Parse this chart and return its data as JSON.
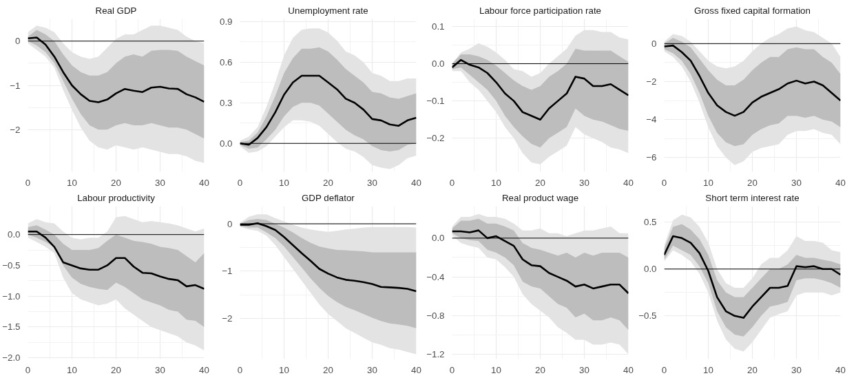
{
  "chart_data": [
    {
      "type": "line",
      "title": "Real GDP",
      "x": [
        0,
        2,
        4,
        6,
        8,
        10,
        12,
        14,
        16,
        18,
        20,
        22,
        24,
        26,
        28,
        30,
        32,
        34,
        36,
        38,
        40
      ],
      "xlim": [
        0,
        40
      ],
      "xticks": [
        0,
        10,
        20,
        30,
        40
      ],
      "ylim": [
        -2.95,
        0.5
      ],
      "yticks": [
        0,
        {
          "value": -1,
          "label": "−1"
        },
        {
          "value": -2,
          "label": "−2"
        }
      ],
      "grid": true,
      "ref_lines": [
        {
          "axis": "y",
          "value": 0,
          "color": "#000000"
        }
      ],
      "series": [
        {
          "color": "#e3e3e3",
          "values": [
            null,
            null,
            null,
            null,
            null,
            null,
            null,
            null,
            null,
            null,
            null,
            null,
            null,
            null,
            null,
            null,
            null,
            null,
            null,
            null,
            null
          ],
          "upper": [
            0.2,
            0.35,
            0.3,
            0.2,
            -0.05,
            -0.25,
            -0.35,
            -0.4,
            -0.35,
            -0.15,
            0.05,
            0.15,
            0.15,
            0.25,
            0.35,
            0.35,
            0.3,
            0.25,
            0.1,
            0.0,
            -0.05
          ],
          "lower": [
            -0.05,
            -0.2,
            -0.35,
            -0.6,
            -1.1,
            -1.55,
            -1.95,
            -2.25,
            -2.4,
            -2.45,
            -2.35,
            -2.4,
            -2.45,
            -2.4,
            -2.45,
            -2.5,
            -2.55,
            -2.55,
            -2.6,
            -2.7,
            -2.75
          ]
        },
        {
          "color": "#bdbdbd",
          "values": [
            null,
            null,
            null,
            null,
            null,
            null,
            null,
            null,
            null,
            null,
            null,
            null,
            null,
            null,
            null,
            null,
            null,
            null,
            null,
            null,
            null
          ],
          "upper": [
            0.1,
            0.25,
            0.15,
            0,
            -0.3,
            -0.55,
            -0.7,
            -0.78,
            -0.78,
            -0.7,
            -0.5,
            -0.35,
            -0.3,
            -0.35,
            -0.22,
            -0.2,
            -0.2,
            -0.22,
            -0.35,
            -0.45,
            -0.55
          ],
          "lower": [
            0,
            -0.1,
            -0.25,
            -0.5,
            -0.9,
            -1.3,
            -1.65,
            -1.9,
            -2.0,
            -2.0,
            -1.9,
            -1.85,
            -1.9,
            -1.9,
            -1.85,
            -1.9,
            -1.95,
            -1.95,
            -2.0,
            -2.1,
            -2.2
          ]
        },
        {
          "color": "#000000",
          "values": [
            0.06,
            0.08,
            -0.08,
            -0.35,
            -0.7,
            -1.0,
            -1.2,
            -1.35,
            -1.38,
            -1.32,
            -1.18,
            -1.08,
            -1.12,
            -1.15,
            -1.05,
            -1.03,
            -1.07,
            -1.08,
            -1.2,
            -1.27,
            -1.37
          ]
        }
      ]
    },
    {
      "type": "line",
      "title": "Unemployment rate",
      "x": [
        0,
        2,
        4,
        6,
        8,
        10,
        12,
        14,
        16,
        18,
        20,
        22,
        24,
        26,
        28,
        30,
        32,
        34,
        36,
        38,
        40
      ],
      "xlim": [
        0,
        40
      ],
      "xticks": [
        0,
        10,
        20,
        30,
        40
      ],
      "ylim": [
        -0.21,
        0.92
      ],
      "yticks": [
        {
          "value": 0,
          "label": "0.0"
        },
        0.3,
        0.6,
        0.9
      ],
      "grid": true,
      "ref_lines": [
        {
          "axis": "y",
          "value": 0,
          "color": "#000000"
        }
      ],
      "series": [
        {
          "color": "#e3e3e3",
          "values": [
            null,
            null,
            null,
            null,
            null,
            null,
            null,
            null,
            null,
            null,
            null,
            null,
            null,
            null,
            null,
            null,
            null,
            null,
            null,
            null,
            null
          ],
          "upper": [
            0.02,
            0.05,
            0.12,
            0.27,
            0.45,
            0.65,
            0.78,
            0.84,
            0.85,
            0.85,
            0.82,
            0.76,
            0.68,
            0.65,
            0.6,
            0.52,
            0.5,
            0.46,
            0.46,
            0.48,
            0.48
          ],
          "lower": [
            -0.02,
            -0.07,
            -0.06,
            -0.02,
            0.05,
            0.12,
            0.17,
            0.17,
            0.16,
            0.13,
            0.07,
            0.01,
            -0.04,
            -0.06,
            -0.1,
            -0.16,
            -0.18,
            -0.19,
            -0.16,
            -0.11,
            -0.09
          ]
        },
        {
          "color": "#bdbdbd",
          "values": [
            null,
            null,
            null,
            null,
            null,
            null,
            null,
            null,
            null,
            null,
            null,
            null,
            null,
            null,
            null,
            null,
            null,
            null,
            null,
            null,
            null
          ],
          "upper": [
            0.01,
            0.02,
            0.08,
            0.2,
            0.35,
            0.52,
            0.63,
            0.7,
            0.7,
            0.71,
            0.68,
            0.62,
            0.55,
            0.5,
            0.45,
            0.38,
            0.37,
            0.34,
            0.33,
            0.35,
            0.37
          ],
          "lower": [
            -0.01,
            -0.04,
            -0.03,
            0.03,
            0.1,
            0.2,
            0.27,
            0.3,
            0.3,
            0.28,
            0.22,
            0.16,
            0.1,
            0.06,
            0.03,
            -0.02,
            -0.05,
            -0.06,
            -0.05,
            -0.01,
            0.0
          ]
        },
        {
          "color": "#000000",
          "values": [
            0,
            -0.01,
            0.04,
            0.12,
            0.23,
            0.36,
            0.45,
            0.5,
            0.5,
            0.5,
            0.45,
            0.4,
            0.33,
            0.3,
            0.25,
            0.18,
            0.17,
            0.14,
            0.13,
            0.17,
            0.19
          ]
        }
      ]
    },
    {
      "type": "line",
      "title": "Labour force participation rate",
      "x": [
        0,
        2,
        4,
        6,
        8,
        10,
        12,
        14,
        16,
        18,
        20,
        22,
        24,
        26,
        28,
        30,
        32,
        34,
        36,
        38,
        40
      ],
      "xlim": [
        0,
        40
      ],
      "xticks": [
        0,
        10,
        20,
        30,
        40
      ],
      "ylim": [
        -0.29,
        0.12
      ],
      "yticks": [
        0.1,
        {
          "value": 0,
          "label": "0.0"
        },
        {
          "value": -0.1,
          "label": "−0.1"
        },
        {
          "value": -0.2,
          "label": "−0.2"
        }
      ],
      "grid": true,
      "ref_lines": [
        {
          "axis": "y",
          "value": 0,
          "color": "#000000"
        }
      ],
      "series": [
        {
          "color": "#e3e3e3",
          "values": [
            null,
            null,
            null,
            null,
            null,
            null,
            null,
            null,
            null,
            null,
            null,
            null,
            null,
            null,
            null,
            null,
            null,
            null,
            null,
            null,
            null
          ],
          "upper": [
            0.0,
            0.03,
            0.04,
            0.055,
            0.045,
            0.03,
            0.01,
            -0.015,
            -0.02,
            -0.035,
            -0.025,
            0.0,
            0.02,
            0.04,
            0.075,
            0.09,
            0.09,
            0.085,
            0.085,
            0.07,
            0.065
          ],
          "lower": [
            -0.02,
            -0.02,
            -0.05,
            -0.07,
            -0.1,
            -0.13,
            -0.17,
            -0.2,
            -0.24,
            -0.265,
            -0.27,
            -0.25,
            -0.235,
            -0.22,
            -0.17,
            -0.19,
            -0.2,
            -0.21,
            -0.225,
            -0.23,
            -0.24
          ]
        },
        {
          "color": "#bdbdbd",
          "values": [
            null,
            null,
            null,
            null,
            null,
            null,
            null,
            null,
            null,
            null,
            null,
            null,
            null,
            null,
            null,
            null,
            null,
            null,
            null,
            null,
            null
          ],
          "upper": [
            0.0,
            0.025,
            0.025,
            0.02,
            0.01,
            -0.005,
            -0.025,
            -0.045,
            -0.06,
            -0.07,
            -0.06,
            -0.035,
            -0.02,
            0.0,
            0.04,
            0.035,
            0.035,
            0.035,
            0.035,
            0.02,
            0.005
          ],
          "lower": [
            -0.015,
            -0.01,
            -0.03,
            -0.05,
            -0.07,
            -0.1,
            -0.14,
            -0.17,
            -0.195,
            -0.215,
            -0.225,
            -0.2,
            -0.185,
            -0.17,
            -0.12,
            -0.14,
            -0.15,
            -0.155,
            -0.165,
            -0.175,
            -0.18
          ]
        },
        {
          "color": "#000000",
          "values": [
            -0.01,
            0.01,
            -0.003,
            -0.01,
            -0.025,
            -0.05,
            -0.08,
            -0.1,
            -0.13,
            -0.14,
            -0.15,
            -0.12,
            -0.1,
            -0.08,
            -0.035,
            -0.04,
            -0.06,
            -0.06,
            -0.055,
            -0.07,
            -0.085
          ]
        }
      ]
    },
    {
      "type": "line",
      "title": "Gross fixed capital formation",
      "x": [
        0,
        2,
        4,
        6,
        8,
        10,
        12,
        14,
        16,
        18,
        20,
        22,
        24,
        26,
        28,
        30,
        32,
        34,
        36,
        38,
        40
      ],
      "xlim": [
        0,
        40
      ],
      "xticks": [
        0,
        10,
        20,
        30,
        40
      ],
      "ylim": [
        -6.75,
        1.3
      ],
      "yticks": [
        0,
        {
          "value": -2,
          "label": "−2"
        },
        {
          "value": -4,
          "label": "−4"
        },
        {
          "value": -6,
          "label": "−6"
        }
      ],
      "grid": true,
      "ref_lines": [
        {
          "axis": "y",
          "value": 0,
          "color": "#000000"
        }
      ],
      "series": [
        {
          "color": "#e3e3e3",
          "values": [
            null,
            null,
            null,
            null,
            null,
            null,
            null,
            null,
            null,
            null,
            null,
            null,
            null,
            null,
            null,
            null,
            null,
            null,
            null,
            null,
            null
          ],
          "upper": [
            0.1,
            0.5,
            0.4,
            0.1,
            -0.4,
            -0.9,
            -1.2,
            -1.3,
            -1.2,
            -0.9,
            -0.4,
            0.0,
            0.3,
            0.5,
            0.8,
            0.9,
            0.7,
            0.6,
            0.3,
            0.0,
            -0.7
          ],
          "lower": [
            -0.4,
            -0.7,
            -1.2,
            -2.0,
            -3.1,
            -4.4,
            -5.4,
            -6.0,
            -6.4,
            -6.2,
            -5.7,
            -5.5,
            -5.4,
            -5.3,
            -4.8,
            -4.6,
            -4.6,
            -4.5,
            -4.7,
            -4.8,
            -5.3
          ]
        },
        {
          "color": "#bdbdbd",
          "values": [
            null,
            null,
            null,
            null,
            null,
            null,
            null,
            null,
            null,
            null,
            null,
            null,
            null,
            null,
            null,
            null,
            null,
            null,
            null,
            null,
            null
          ],
          "upper": [
            0,
            0.3,
            0.1,
            -0.2,
            -0.8,
            -1.4,
            -1.9,
            -2.2,
            -2.2,
            -1.9,
            -1.4,
            -1.0,
            -0.7,
            -0.7,
            -0.3,
            -0.2,
            -0.3,
            -0.3,
            -0.7,
            -1.0,
            -1.6
          ],
          "lower": [
            -0.3,
            -0.5,
            -0.9,
            -1.6,
            -2.6,
            -3.8,
            -4.7,
            -5.2,
            -5.4,
            -5.3,
            -4.8,
            -4.5,
            -4.3,
            -4.2,
            -3.8,
            -3.8,
            -3.9,
            -3.8,
            -4.0,
            -4.1,
            -4.4
          ]
        },
        {
          "color": "#000000",
          "values": [
            -0.15,
            -0.1,
            -0.45,
            -0.9,
            -1.7,
            -2.6,
            -3.25,
            -3.6,
            -3.8,
            -3.6,
            -3.1,
            -2.8,
            -2.6,
            -2.4,
            -2.1,
            -1.95,
            -2.1,
            -2.0,
            -2.2,
            -2.6,
            -3.0
          ]
        }
      ]
    },
    {
      "type": "line",
      "title": "Labour productivity",
      "x": [
        0,
        2,
        4,
        6,
        8,
        10,
        12,
        14,
        16,
        18,
        20,
        22,
        24,
        26,
        28,
        30,
        32,
        34,
        36,
        38,
        40
      ],
      "xlim": [
        0,
        40
      ],
      "xticks": [
        0,
        10,
        20,
        30,
        40
      ],
      "ylim": [
        -2.02,
        0.46
      ],
      "yticks": [
        {
          "value": 0,
          "label": "0.0"
        },
        {
          "value": -0.5,
          "label": "−0.5"
        },
        {
          "value": -1,
          "label": "−1.0"
        },
        {
          "value": -1.5,
          "label": "−1.5"
        },
        {
          "value": -2,
          "label": "−2.0"
        }
      ],
      "grid": true,
      "ref_lines": [
        {
          "axis": "y",
          "value": 0,
          "color": "#000000"
        }
      ],
      "series": [
        {
          "color": "#e3e3e3",
          "values": [
            null,
            null,
            null,
            null,
            null,
            null,
            null,
            null,
            null,
            null,
            null,
            null,
            null,
            null,
            null,
            null,
            null,
            null,
            null,
            null,
            null
          ],
          "upper": [
            0.18,
            0.25,
            0.2,
            0.18,
            0.05,
            -0.05,
            -0.08,
            -0.05,
            -0.05,
            0.05,
            0.28,
            0.3,
            0.25,
            0.2,
            0.22,
            0.2,
            0.18,
            0.15,
            0.1,
            0.05,
            0.1
          ],
          "lower": [
            -0.05,
            -0.12,
            -0.2,
            -0.3,
            -0.7,
            -0.95,
            -1.05,
            -1.1,
            -1.15,
            -1.12,
            -1.05,
            -1.2,
            -1.3,
            -1.4,
            -1.5,
            -1.55,
            -1.6,
            -1.65,
            -1.75,
            -1.8,
            -1.88
          ]
        },
        {
          "color": "#bdbdbd",
          "values": [
            null,
            null,
            null,
            null,
            null,
            null,
            null,
            null,
            null,
            null,
            null,
            null,
            null,
            null,
            null,
            null,
            null,
            null,
            null,
            null,
            null
          ],
          "upper": [
            0.12,
            0.15,
            0.08,
            0.0,
            -0.15,
            -0.25,
            -0.25,
            -0.25,
            -0.22,
            -0.1,
            0.0,
            -0.05,
            -0.1,
            -0.12,
            -0.15,
            -0.2,
            -0.22,
            -0.25,
            -0.35,
            -0.45,
            -0.3
          ],
          "lower": [
            0,
            -0.05,
            -0.12,
            -0.2,
            -0.5,
            -0.7,
            -0.8,
            -0.85,
            -0.88,
            -0.9,
            -0.78,
            -0.85,
            -0.95,
            -1.05,
            -1.1,
            -1.15,
            -1.22,
            -1.25,
            -1.38,
            -1.4,
            -1.5
          ]
        },
        {
          "color": "#000000",
          "values": [
            0.05,
            0.05,
            -0.05,
            -0.2,
            -0.45,
            -0.5,
            -0.55,
            -0.57,
            -0.57,
            -0.5,
            -0.38,
            -0.38,
            -0.52,
            -0.62,
            -0.63,
            -0.68,
            -0.72,
            -0.74,
            -0.84,
            -0.82,
            -0.88
          ]
        }
      ]
    },
    {
      "type": "line",
      "title": "GDP deflator",
      "x": [
        0,
        2,
        4,
        6,
        8,
        10,
        12,
        14,
        16,
        18,
        20,
        22,
        24,
        26,
        28,
        30,
        32,
        34,
        36,
        38,
        40
      ],
      "xlim": [
        0,
        40
      ],
      "xticks": [
        0,
        10,
        20,
        30,
        40
      ],
      "ylim": [
        -2.85,
        0.37
      ],
      "yticks": [
        0,
        {
          "value": -1,
          "label": "−1"
        },
        {
          "value": -2,
          "label": "−2"
        }
      ],
      "grid": true,
      "ref_lines": [
        {
          "axis": "y",
          "value": 0,
          "color": "#000000"
        }
      ],
      "series": [
        {
          "color": "#e3e3e3",
          "values": [
            null,
            null,
            null,
            null,
            null,
            null,
            null,
            null,
            null,
            null,
            null,
            null,
            null,
            null,
            null,
            null,
            null,
            null,
            null,
            null,
            null
          ],
          "upper": [
            0.02,
            0.15,
            0.2,
            0.2,
            0.12,
            0.05,
            -0.02,
            -0.08,
            -0.12,
            -0.15,
            -0.17,
            -0.15,
            -0.12,
            -0.1,
            -0.08,
            -0.07,
            -0.07,
            -0.07,
            -0.07,
            -0.07,
            -0.08
          ],
          "lower": [
            -0.06,
            -0.12,
            -0.15,
            -0.25,
            -0.45,
            -0.7,
            -0.95,
            -1.2,
            -1.45,
            -1.7,
            -1.9,
            -2.05,
            -2.2,
            -2.3,
            -2.4,
            -2.5,
            -2.55,
            -2.62,
            -2.65,
            -2.7,
            -2.75
          ]
        },
        {
          "color": "#bdbdbd",
          "values": [
            null,
            null,
            null,
            null,
            null,
            null,
            null,
            null,
            null,
            null,
            null,
            null,
            null,
            null,
            null,
            null,
            null,
            null,
            null,
            null,
            null
          ],
          "upper": [
            0,
            0.08,
            0.1,
            0.08,
            0.0,
            -0.08,
            -0.18,
            -0.3,
            -0.4,
            -0.48,
            -0.52,
            -0.55,
            -0.56,
            -0.57,
            -0.58,
            -0.6,
            -0.6,
            -0.6,
            -0.6,
            -0.6,
            -0.6
          ],
          "lower": [
            -0.05,
            -0.08,
            -0.08,
            -0.18,
            -0.3,
            -0.48,
            -0.7,
            -0.92,
            -1.15,
            -1.35,
            -1.52,
            -1.65,
            -1.75,
            -1.82,
            -1.9,
            -1.98,
            -2.05,
            -2.1,
            -2.12,
            -2.15,
            -2.2
          ]
        },
        {
          "color": "#000000",
          "values": [
            -0.02,
            -0.02,
            0.01,
            -0.05,
            -0.13,
            -0.28,
            -0.45,
            -0.62,
            -0.78,
            -0.95,
            -1.05,
            -1.13,
            -1.18,
            -1.2,
            -1.23,
            -1.27,
            -1.33,
            -1.34,
            -1.35,
            -1.37,
            -1.42
          ]
        }
      ]
    },
    {
      "type": "line",
      "title": "Real product wage",
      "x": [
        0,
        2,
        4,
        6,
        8,
        10,
        12,
        14,
        16,
        18,
        20,
        22,
        24,
        26,
        28,
        30,
        32,
        34,
        36,
        38,
        40
      ],
      "xlim": [
        0,
        40
      ],
      "xticks": [
        0,
        10,
        20,
        30,
        40
      ],
      "ylim": [
        -1.25,
        0.33
      ],
      "yticks": [
        {
          "value": 0,
          "label": "0.0"
        },
        {
          "value": -0.4,
          "label": "−0.4"
        },
        {
          "value": -0.8,
          "label": "−0.8"
        },
        {
          "value": -1.2,
          "label": "−1.2"
        }
      ],
      "grid": true,
      "ref_lines": [
        {
          "axis": "y",
          "value": 0,
          "color": "#000000"
        }
      ],
      "series": [
        {
          "color": "#e3e3e3",
          "values": [
            null,
            null,
            null,
            null,
            null,
            null,
            null,
            null,
            null,
            null,
            null,
            null,
            null,
            null,
            null,
            null,
            null,
            null,
            null,
            null,
            null
          ],
          "upper": [
            0.12,
            0.22,
            0.22,
            0.25,
            0.22,
            0.22,
            0.2,
            0.15,
            0.08,
            0.08,
            0.1,
            0.05,
            0.05,
            0.02,
            0.05,
            0.08,
            0.08,
            0.1,
            0.12,
            0.05,
            0.05
          ],
          "lower": [
            0.03,
            -0.05,
            -0.08,
            -0.1,
            -0.2,
            -0.22,
            -0.3,
            -0.4,
            -0.58,
            -0.68,
            -0.75,
            -0.82,
            -0.92,
            -0.98,
            -1.05,
            -1.05,
            -1.1,
            -1.1,
            -1.08,
            -1.1,
            -1.2
          ]
        },
        {
          "color": "#bdbdbd",
          "values": [
            null,
            null,
            null,
            null,
            null,
            null,
            null,
            null,
            null,
            null,
            null,
            null,
            null,
            null,
            null,
            null,
            null,
            null,
            null,
            null,
            null
          ],
          "upper": [
            0.1,
            0.18,
            0.18,
            0.2,
            0.15,
            0.15,
            0.12,
            0.08,
            -0.05,
            -0.1,
            -0.12,
            -0.15,
            -0.18,
            -0.15,
            -0.2,
            -0.15,
            -0.18,
            -0.15,
            -0.15,
            -0.15,
            -0.2
          ],
          "lower": [
            0.05,
            0.0,
            -0.02,
            -0.03,
            -0.12,
            -0.15,
            -0.2,
            -0.28,
            -0.45,
            -0.5,
            -0.52,
            -0.6,
            -0.68,
            -0.72,
            -0.82,
            -0.78,
            -0.85,
            -0.85,
            -0.82,
            -0.85,
            -0.95
          ]
        },
        {
          "color": "#000000",
          "values": [
            0.07,
            0.07,
            0.06,
            0.08,
            0.0,
            0.02,
            -0.03,
            -0.08,
            -0.22,
            -0.28,
            -0.29,
            -0.36,
            -0.4,
            -0.44,
            -0.5,
            -0.48,
            -0.52,
            -0.5,
            -0.48,
            -0.48,
            -0.57
          ]
        }
      ]
    },
    {
      "type": "line",
      "title": "Short term interest rate",
      "x": [
        0,
        2,
        4,
        6,
        8,
        10,
        12,
        14,
        16,
        18,
        20,
        22,
        24,
        26,
        28,
        30,
        32,
        34,
        36,
        38,
        40
      ],
      "xlim": [
        0,
        40
      ],
      "xticks": [
        0,
        10,
        20,
        30,
        40
      ],
      "ylim": [
        -0.96,
        0.67
      ],
      "yticks": [
        0.5,
        {
          "value": 0,
          "label": "0.0"
        },
        {
          "value": -0.5,
          "label": "−0.5"
        }
      ],
      "grid": true,
      "ref_lines": [
        {
          "axis": "y",
          "value": 0,
          "color": "#000000"
        }
      ],
      "series": [
        {
          "color": "#e3e3e3",
          "values": [
            null,
            null,
            null,
            null,
            null,
            null,
            null,
            null,
            null,
            null,
            null,
            null,
            null,
            null,
            null,
            null,
            null,
            null,
            null,
            null,
            null
          ],
          "upper": [
            0.25,
            0.52,
            0.58,
            0.55,
            0.45,
            0.28,
            0.0,
            -0.15,
            -0.2,
            -0.2,
            -0.1,
            0.05,
            0.12,
            0.12,
            0.2,
            0.35,
            0.3,
            0.3,
            0.28,
            0.2,
            0.18
          ],
          "lower": [
            0.08,
            0.2,
            0.15,
            0.08,
            -0.05,
            -0.25,
            -0.55,
            -0.75,
            -0.85,
            -0.88,
            -0.78,
            -0.65,
            -0.52,
            -0.48,
            -0.45,
            -0.28,
            -0.25,
            -0.25,
            -0.25,
            -0.28,
            -0.25
          ]
        },
        {
          "color": "#bdbdbd",
          "values": [
            null,
            null,
            null,
            null,
            null,
            null,
            null,
            null,
            null,
            null,
            null,
            null,
            null,
            null,
            null,
            null,
            null,
            null,
            null,
            null,
            null
          ],
          "upper": [
            0.22,
            0.45,
            0.48,
            0.42,
            0.32,
            0.15,
            -0.12,
            -0.25,
            -0.3,
            -0.3,
            -0.2,
            -0.1,
            0.0,
            0.0,
            0.05,
            0.15,
            0.12,
            0.12,
            0.1,
            0.08,
            0.05
          ],
          "lower": [
            0.1,
            0.25,
            0.2,
            0.15,
            0.03,
            -0.15,
            -0.45,
            -0.62,
            -0.7,
            -0.72,
            -0.62,
            -0.5,
            -0.4,
            -0.38,
            -0.35,
            -0.12,
            -0.1,
            -0.1,
            -0.12,
            -0.15,
            -0.2
          ]
        },
        {
          "color": "#000000",
          "values": [
            0.15,
            0.35,
            0.33,
            0.28,
            0.17,
            -0.02,
            -0.3,
            -0.45,
            -0.5,
            -0.52,
            -0.4,
            -0.3,
            -0.2,
            -0.2,
            -0.18,
            0.03,
            0.02,
            0.03,
            0.0,
            0.0,
            -0.06
          ]
        }
      ]
    }
  ]
}
